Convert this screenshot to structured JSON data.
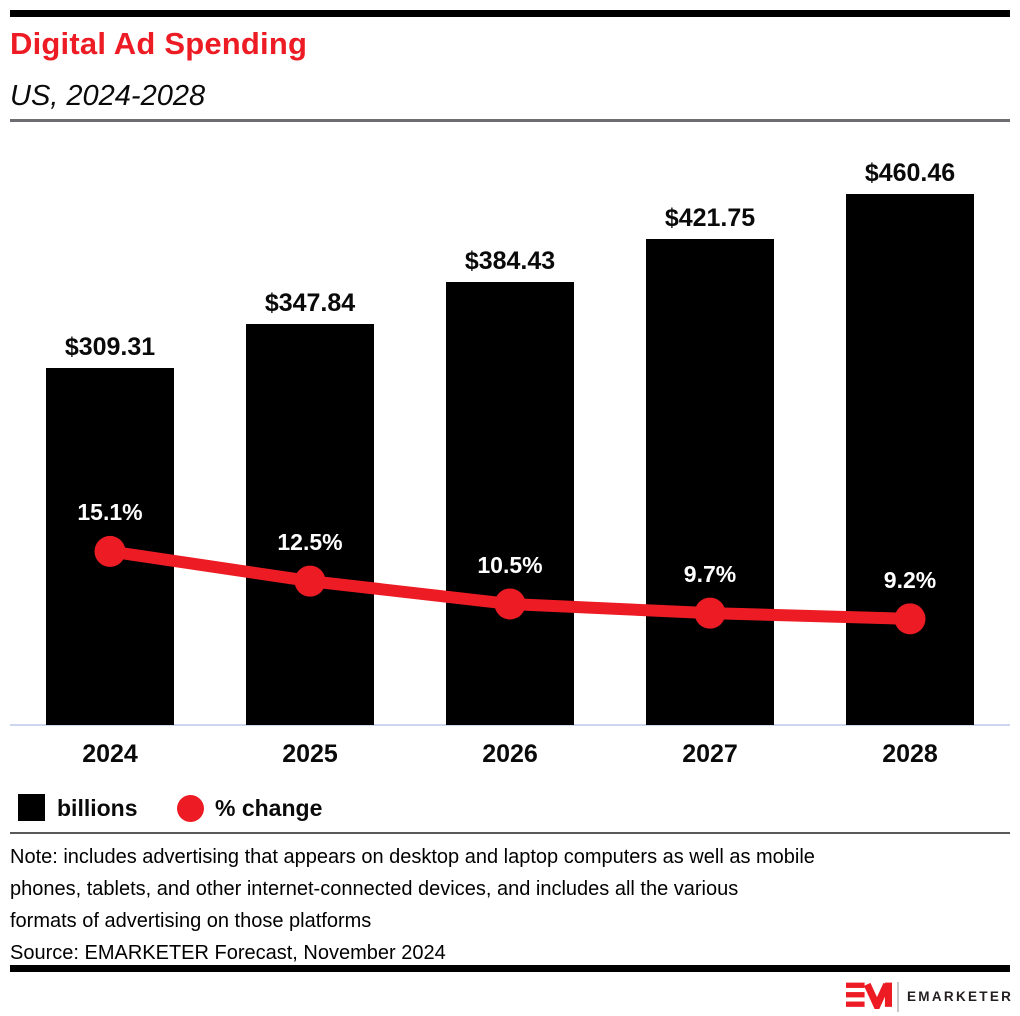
{
  "header": {
    "title": "Digital Ad Spending",
    "subtitle": "US, 2024-2028"
  },
  "legend": {
    "bar_label": "billions",
    "line_label": "% change"
  },
  "notes": {
    "lines": [
      "Note: includes advertising that appears on desktop and laptop computers as well as mobile",
      "phones, tablets, and other internet-connected devices, and includes all the various",
      "formats of advertising on those platforms"
    ],
    "source": "Source: EMARKETER Forecast, November 2024"
  },
  "footer": {
    "logo_text": "EMARKETER"
  },
  "colors": {
    "accent_red": "#ED1C24",
    "bar_black": "#000000",
    "axis_line": "#ccd6ee",
    "header_rule_gray": "#6d6e71",
    "note_rule_gray": "#58595b",
    "label_white": "#ffffff"
  },
  "chart_data": {
    "type": "combo",
    "title": "Digital Ad Spending",
    "subtitle": "US, 2024-2028",
    "categories": [
      "2024",
      "2025",
      "2026",
      "2027",
      "2028"
    ],
    "series": [
      {
        "name": "billions",
        "type": "bar",
        "unit": "US$ billions",
        "values": [
          309.31,
          347.84,
          384.43,
          421.75,
          460.46
        ],
        "labels": [
          "$309.31",
          "$347.84",
          "$384.43",
          "$421.75",
          "$460.46"
        ]
      },
      {
        "name": "% change",
        "type": "line",
        "unit": "percent",
        "values": [
          15.1,
          12.5,
          10.5,
          9.7,
          9.2
        ],
        "labels": [
          "15.1%",
          "12.5%",
          "10.5%",
          "9.7%",
          "9.2%"
        ]
      }
    ],
    "xlabel": "",
    "ylabel": "",
    "ylim_bar": [
      0,
      460.46
    ],
    "ylim_line": [
      0,
      15.1
    ],
    "grid": false,
    "legend_position": "bottom"
  }
}
